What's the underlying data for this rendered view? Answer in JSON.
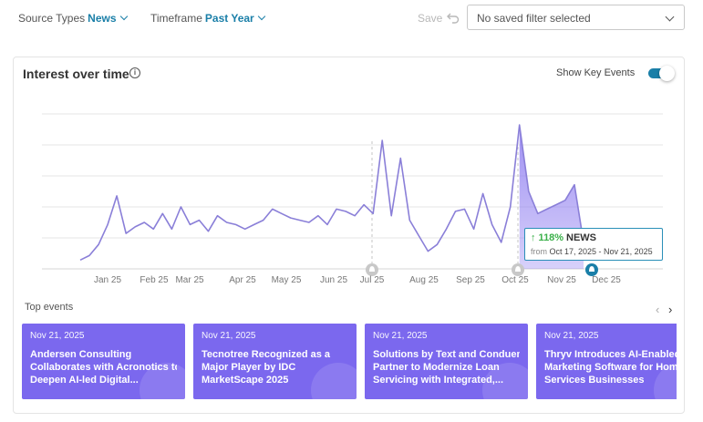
{
  "filters": {
    "source_types_label": "Source Types",
    "source_types_value": "News",
    "timeframe_label": "Timeframe",
    "timeframe_value": "Past Year",
    "save_label": "Save",
    "saved_filter_placeholder": "No saved filter selected"
  },
  "card": {
    "title": "Interest over time",
    "show_key_events_label": "Show Key Events",
    "show_key_events_on": true
  },
  "chart_data": {
    "type": "area",
    "x_ticks": [
      "Jan 25",
      "Feb 25",
      "Mar 25",
      "Apr 25",
      "May 25",
      "Jun 25",
      "Jul 25",
      "Aug 25",
      "Sep 25",
      "Oct 25",
      "Nov 25",
      "Dec 25"
    ],
    "series": [
      {
        "values": [
          4,
          6,
          11,
          20,
          33,
          16,
          19,
          21,
          18,
          25,
          18,
          28,
          20,
          22,
          17,
          24,
          21,
          20,
          18,
          20,
          22,
          27,
          25,
          23,
          22,
          21,
          24,
          20,
          27,
          26,
          24,
          29,
          25,
          58,
          24,
          50,
          22,
          15,
          8,
          11,
          18,
          26,
          27,
          18,
          34,
          20,
          12,
          28,
          65,
          35,
          25,
          27,
          29,
          31,
          38,
          12
        ]
      }
    ],
    "highlight_range": "Oct 17, 2025 - Nov 21, 2025",
    "key_events_x": [
      "Jul 25",
      "Oct 25",
      "Nov 21, 2025"
    ],
    "grid": true,
    "colors": {
      "line": "#8a7fd8",
      "fill": "#8d7bf0",
      "key_event": "#1a7fa8"
    }
  },
  "tooltip": {
    "change": "↑ 118%",
    "source": "NEWS",
    "from_label": "from",
    "range": "Oct 17, 2025 - Nov 21, 2025"
  },
  "top_events_label": "Top events",
  "events": [
    {
      "date": "Nov 21, 2025",
      "lines": [
        "Andersen Consulting",
        "Collaborates with Acronotics to",
        "Deepen AI-led Digital..."
      ]
    },
    {
      "date": "Nov 21, 2025",
      "lines": [
        "Tecnotree Recognized as a",
        "Major Player by IDC",
        "MarketScape 2025"
      ]
    },
    {
      "date": "Nov 21, 2025",
      "lines": [
        "Solutions by Text and Conduent",
        "Partner to Modernize Loan",
        "Servicing with Integrated,..."
      ]
    },
    {
      "date": "Nov 21, 2025",
      "lines": [
        "Thryv Introduces AI-Enabled",
        "Marketing Software for Home",
        "Services Businesses"
      ]
    }
  ],
  "colors": {
    "accent": "#1a7fa8",
    "event_card": "#7b68ee",
    "increase": "#3bb04a"
  }
}
